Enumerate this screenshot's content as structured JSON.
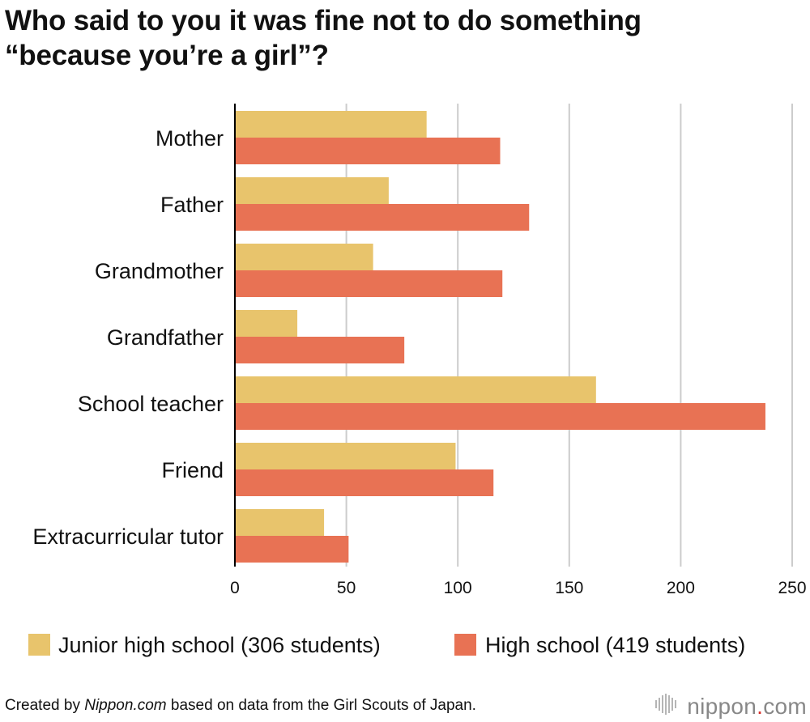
{
  "title": {
    "line1": "Who said to you it was fine not to do something",
    "line2": "“because you’re a girl”?"
  },
  "colors": {
    "junior": "#e8c46c",
    "high": "#e87254",
    "grid": "#cccccc",
    "axis": "#000000"
  },
  "chart_data": {
    "type": "bar",
    "orientation": "horizontal",
    "categories": [
      "Mother",
      "Father",
      "Grandmother",
      "Grandfather",
      "School teacher",
      "Friend",
      "Extracurricular tutor"
    ],
    "series": [
      {
        "name": "Junior high school (306 students)",
        "values": [
          86,
          69,
          62,
          28,
          162,
          99,
          40
        ]
      },
      {
        "name": "High school (419 students)",
        "values": [
          119,
          132,
          120,
          76,
          238,
          116,
          51
        ]
      }
    ],
    "xlim": [
      0,
      250
    ],
    "xticks": [
      "0",
      "50",
      "100",
      "150",
      "200",
      "250"
    ],
    "grid": true,
    "legend": "bottom"
  },
  "legend": {
    "junior": "Junior high school (306 students)",
    "high": "High school (419 students)"
  },
  "footer": {
    "credit_prefix": "Created by ",
    "credit_source": "Nippon.com",
    "credit_suffix": " based on data from the Girl Scouts of Japan.",
    "logo_name": "nippon",
    "logo_dot": ".",
    "logo_tld": "com",
    "logo_icon": "sound-bars-icon"
  }
}
